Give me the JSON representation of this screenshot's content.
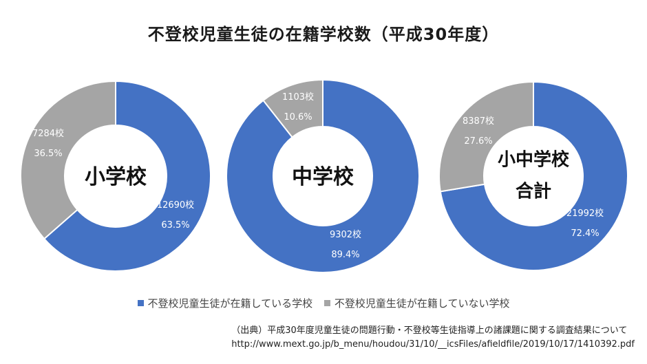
{
  "chart_data": {
    "type": "pie",
    "title": "不登校児童生徒の在籍学校数（平成30年度）",
    "legend": [
      "不登校児童生徒が在籍している学校",
      "不登校児童生徒が在籍していない学校"
    ],
    "legend_position": "bottom",
    "colors": [
      "#4472c4",
      "#a5a5a5"
    ],
    "charts": [
      {
        "center_label": [
          "小学校"
        ],
        "slices": [
          {
            "value": 12690,
            "label": "12690校",
            "percent_label": "63.5%"
          },
          {
            "value": 7284,
            "label": "7284校",
            "percent_label": "36.5%"
          }
        ]
      },
      {
        "center_label": [
          "中学校"
        ],
        "slices": [
          {
            "value": 9302,
            "label": "9302校",
            "percent_label": "89.4%"
          },
          {
            "value": 1103,
            "label": "1103校",
            "percent_label": "10.6%"
          }
        ]
      },
      {
        "center_label": [
          "小中学校",
          "合計"
        ],
        "slices": [
          {
            "value": 21992,
            "label": "21992校",
            "percent_label": "72.4%"
          },
          {
            "value": 8387,
            "label": "8387校",
            "percent_label": "27.6%"
          }
        ]
      }
    ]
  },
  "source": {
    "line1": "（出典）平成30年度児童生徒の問題行動・不登校等生徒指導上の諸課題に関する調査結果について",
    "line2": "http://www.mext.go.jp/b_menu/houdou/31/10/__icsFiles/afieldfile/2019/10/17/1410392.pdf"
  }
}
